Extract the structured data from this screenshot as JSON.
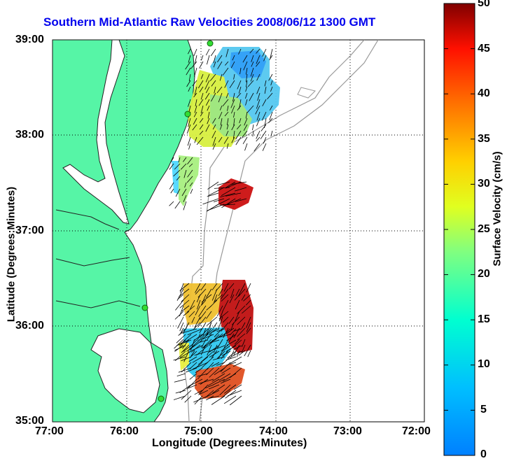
{
  "title": "Southern Mid-Atlantic Raw Velocities 2008/06/12 1300 GMT",
  "x_axis": {
    "label": "Longitude (Degrees:Minutes)",
    "ticks": [
      "77:00",
      "76:00",
      "75:00",
      "74:00",
      "73:00",
      "72:00"
    ]
  },
  "y_axis": {
    "label": "Latitude (Degrees:Minutes)",
    "ticks": [
      "39:00",
      "38:00",
      "37:00",
      "36:00",
      "35:00"
    ]
  },
  "colorbar": {
    "label": "Surface Velocity (cm/s)",
    "ticks": [
      "50",
      "45",
      "40",
      "35",
      "30",
      "25",
      "20",
      "15",
      "10",
      "5",
      "0"
    ],
    "min": 0,
    "max": 50,
    "colormap": "jet"
  },
  "colors": {
    "land": "#56f5a6",
    "title": "#0000ee",
    "bathymetry": "#999999",
    "coast": "#222222",
    "stations": "#33dd33"
  },
  "map": {
    "lon_range": [
      -77,
      -72
    ],
    "lat_range": [
      35,
      39
    ],
    "grid": "dotted"
  }
}
